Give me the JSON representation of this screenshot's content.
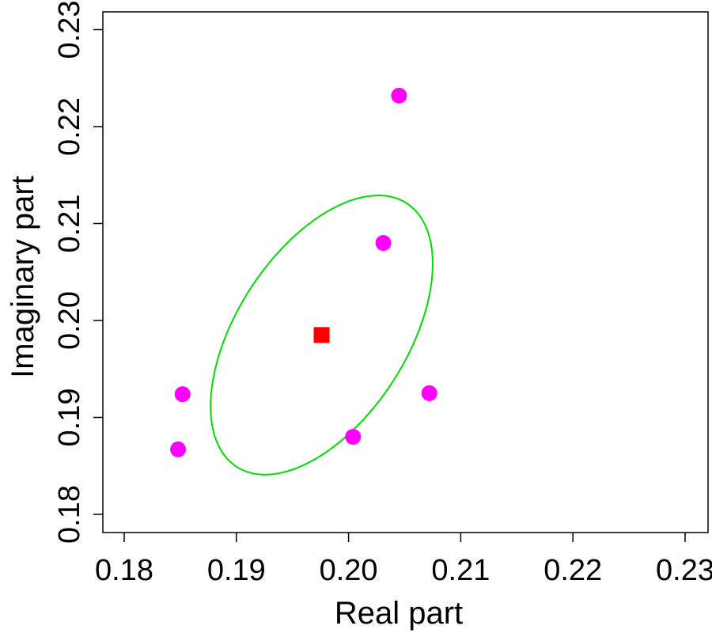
{
  "chart_data": {
    "type": "scatter",
    "title": "",
    "xlabel": "Real part",
    "ylabel": "Imaginary part",
    "xlim": [
      0.178,
      0.232
    ],
    "ylim": [
      0.178,
      0.232
    ],
    "xticks": [
      "0.18",
      "0.19",
      "0.20",
      "0.21",
      "0.22",
      "0.23"
    ],
    "yticks": [
      "0.18",
      "0.19",
      "0.20",
      "0.21",
      "0.22",
      "0.23"
    ],
    "grid": false,
    "points": {
      "color": "#ff00ff",
      "marker": "circle",
      "x": [
        0.2045,
        0.2031,
        0.1852,
        0.1848,
        0.2004,
        0.2072
      ],
      "y": [
        0.2232,
        0.208,
        0.1924,
        0.1867,
        0.188,
        0.1925
      ]
    },
    "center": {
      "color": "#ff0000",
      "marker": "square",
      "x": 0.1976,
      "y": 0.1985
    },
    "ellipse": {
      "color": "#00dd00",
      "center": [
        0.1976,
        0.1985
      ],
      "x_halfwidth": 0.0099,
      "y_halfwidth": 0.0144,
      "correlation": 0.51
    }
  }
}
